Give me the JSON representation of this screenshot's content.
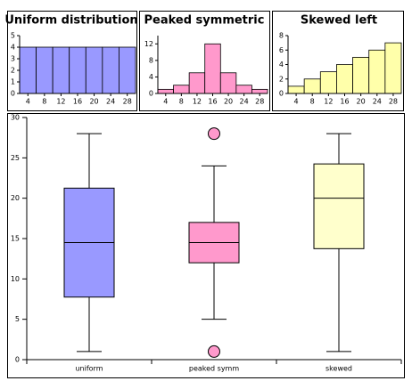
{
  "chart_data": [
    {
      "type": "histogram",
      "title": "Uniform distribution",
      "bins": [
        2,
        6,
        10,
        14,
        18,
        22,
        26,
        30
      ],
      "values": [
        4,
        4,
        4,
        4,
        4,
        4,
        4
      ],
      "color": "#9999ff",
      "xlim": [
        2,
        30
      ],
      "xticks": [
        4,
        8,
        12,
        16,
        20,
        24,
        28
      ],
      "ylim": [
        0,
        5
      ],
      "yticks": [
        0,
        1,
        2,
        3,
        4,
        5
      ]
    },
    {
      "type": "histogram",
      "title": "Peaked symmetric",
      "bins": [
        2,
        6,
        10,
        14,
        18,
        22,
        26,
        30
      ],
      "values": [
        1,
        2,
        5,
        12,
        5,
        2,
        1
      ],
      "color": "#ff99cc",
      "xlim": [
        2,
        30
      ],
      "xticks": [
        4,
        8,
        12,
        16,
        20,
        24,
        28
      ],
      "ylim": [
        0,
        14
      ],
      "yticks": [
        0,
        4,
        8,
        12
      ]
    },
    {
      "type": "histogram",
      "title": "Skewed left",
      "bins": [
        2,
        6,
        10,
        14,
        18,
        22,
        26,
        30
      ],
      "values": [
        1,
        2,
        3,
        4,
        5,
        6,
        7
      ],
      "color": "#ffffaa",
      "xlim": [
        2,
        30
      ],
      "xticks": [
        4,
        8,
        12,
        16,
        20,
        24,
        28
      ],
      "ylim": [
        0,
        8
      ],
      "yticks": [
        0,
        2,
        4,
        6,
        8
      ]
    },
    {
      "type": "box",
      "categories": [
        "uniform",
        "peaked symm",
        "skewed"
      ],
      "colors": [
        "#9999ff",
        "#ff99cc",
        "#ffffcc"
      ],
      "boxes": [
        {
          "whislo": 1,
          "q1": 7.75,
          "med": 14.5,
          "q3": 21.25,
          "whishi": 28,
          "fliers": []
        },
        {
          "whislo": 5,
          "q1": 12,
          "med": 14.5,
          "q3": 17,
          "whishi": 24,
          "fliers": [
            1,
            28
          ]
        },
        {
          "whislo": 1,
          "q1": 13.75,
          "med": 20,
          "q3": 24.25,
          "whishi": 28,
          "fliers": []
        }
      ],
      "ylim": [
        0,
        30
      ],
      "yticks": [
        0,
        5,
        10,
        15,
        20,
        25,
        30
      ]
    }
  ]
}
